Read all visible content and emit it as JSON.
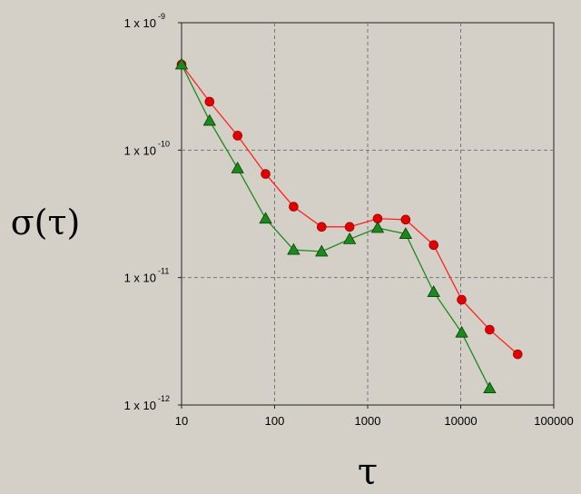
{
  "chart_data": {
    "type": "line",
    "xlabel": "τ",
    "ylabel": "σ(τ)",
    "x_scale": "log",
    "y_scale": "log",
    "xlim": [
      10,
      100000
    ],
    "ylim": [
      1e-12,
      1e-09
    ],
    "grid": true,
    "background": "#d4d0c8",
    "plot_background": "#d4d0c8",
    "x_ticks": [
      {
        "value": 10,
        "label": "10"
      },
      {
        "value": 100,
        "label": "100"
      },
      {
        "value": 1000,
        "label": "1000"
      },
      {
        "value": 10000,
        "label": "10000"
      },
      {
        "value": 100000,
        "label": "100000"
      }
    ],
    "y_ticks": [
      {
        "value": 1e-09,
        "base": "1 x 10",
        "exp": "-9"
      },
      {
        "value": 1e-10,
        "base": "1 x 10",
        "exp": "-10"
      },
      {
        "value": 1e-11,
        "base": "1 x 10",
        "exp": "-11"
      },
      {
        "value": 1e-12,
        "base": "1 x 10",
        "exp": "-12"
      }
    ],
    "series": [
      {
        "marker": "circle",
        "line_color": "#ff2020",
        "marker_color": "#e00000",
        "x": [
          10,
          20,
          40,
          80,
          160,
          320,
          640,
          1280,
          2560,
          5120,
          10240,
          20480,
          40960
        ],
        "y": [
          4.7e-10,
          2.4e-10,
          1.3e-10,
          6.5e-11,
          3.6e-11,
          2.5e-11,
          2.5e-11,
          2.9e-11,
          2.85e-11,
          1.8e-11,
          6.7e-12,
          3.9e-12,
          2.5e-12
        ]
      },
      {
        "marker": "triangle",
        "line_color": "#1a8a1a",
        "marker_color": "#1a8a1a",
        "x": [
          10,
          20,
          40,
          80,
          160,
          320,
          640,
          1280,
          2560,
          5120,
          10240,
          20480
        ],
        "y": [
          4.7e-10,
          1.7e-10,
          7.2e-11,
          2.9e-11,
          1.65e-11,
          1.6e-11,
          2e-11,
          2.45e-11,
          2.2e-11,
          7.7e-12,
          3.7e-12,
          1.35e-12
        ]
      }
    ]
  }
}
